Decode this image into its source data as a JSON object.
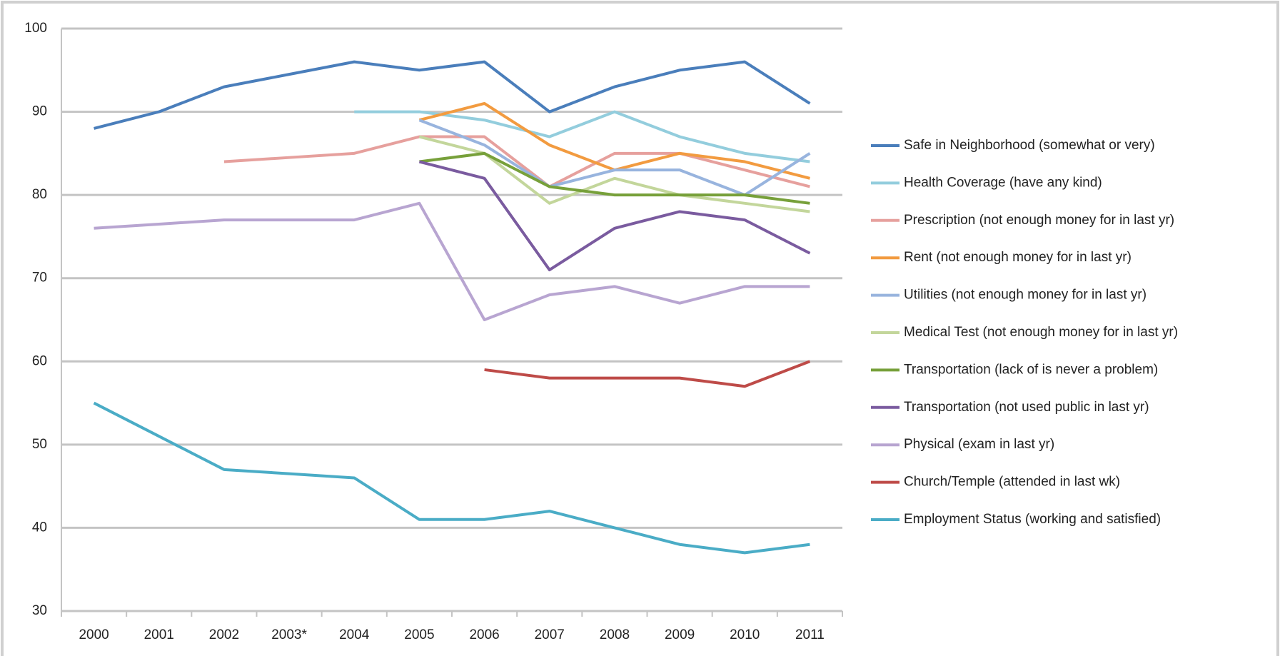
{
  "chart_data": {
    "type": "line",
    "categories": [
      "2000",
      "2001",
      "2002",
      "2003*",
      "2004",
      "2005",
      "2006",
      "2007",
      "2008",
      "2009",
      "2010",
      "2011"
    ],
    "ylim": [
      30,
      100
    ],
    "yticks": [
      30,
      40,
      50,
      60,
      70,
      80,
      90,
      100
    ],
    "grid": true,
    "legend": "right",
    "series": [
      {
        "name": "Safe in Neighborhood (somewhat or very)",
        "color": "#4a7ebb",
        "values": [
          88,
          90,
          93,
          94.5,
          96,
          95,
          96,
          90,
          93,
          95,
          96,
          91
        ]
      },
      {
        "name": "Health Coverage (have any kind)",
        "color": "#93cddd",
        "values": [
          null,
          null,
          null,
          null,
          90,
          90,
          89,
          87,
          90,
          87,
          85,
          84
        ]
      },
      {
        "name": "Prescription (not enough money for in last yr)",
        "color": "#e6a09d",
        "values": [
          null,
          null,
          84,
          84.5,
          85,
          87,
          87,
          81,
          85,
          85,
          83,
          81
        ]
      },
      {
        "name": "Rent (not enough money for in last yr)",
        "color": "#f29b40",
        "values": [
          null,
          null,
          null,
          null,
          null,
          89,
          91,
          86,
          83,
          85,
          84,
          82
        ]
      },
      {
        "name": "Utilities (not enough money for in last yr)",
        "color": "#98b4de",
        "values": [
          null,
          null,
          null,
          null,
          null,
          89,
          86,
          81,
          83,
          83,
          80,
          85
        ]
      },
      {
        "name": "Medical Test (not enough money for in last yr)",
        "color": "#c3d69b",
        "values": [
          null,
          null,
          null,
          null,
          null,
          87,
          85,
          79,
          82,
          80,
          79,
          78
        ]
      },
      {
        "name": "Transportation (lack of is never a problem)",
        "color": "#77a03a",
        "values": [
          null,
          null,
          null,
          null,
          null,
          84,
          85,
          81,
          80,
          80,
          80,
          79
        ]
      },
      {
        "name": "Transportation (not used public in last yr)",
        "color": "#7a5b9f",
        "values": [
          null,
          null,
          null,
          null,
          null,
          84,
          82,
          71,
          76,
          78,
          77,
          73
        ]
      },
      {
        "name": "Physical (exam in last yr)",
        "color": "#b8a5d1",
        "values": [
          76,
          76.5,
          77,
          77,
          77,
          79,
          65,
          68,
          69,
          67,
          69,
          69
        ]
      },
      {
        "name": "Church/Temple (attended in last wk)",
        "color": "#be4b48",
        "values": [
          null,
          null,
          null,
          null,
          null,
          null,
          59,
          58,
          58,
          58,
          57,
          60
        ]
      },
      {
        "name": "Employment Status (working and satisfied)",
        "color": "#4aacc6",
        "values": [
          55,
          51,
          47,
          46.5,
          46,
          41,
          41,
          42,
          40,
          38,
          37,
          38
        ]
      }
    ]
  }
}
